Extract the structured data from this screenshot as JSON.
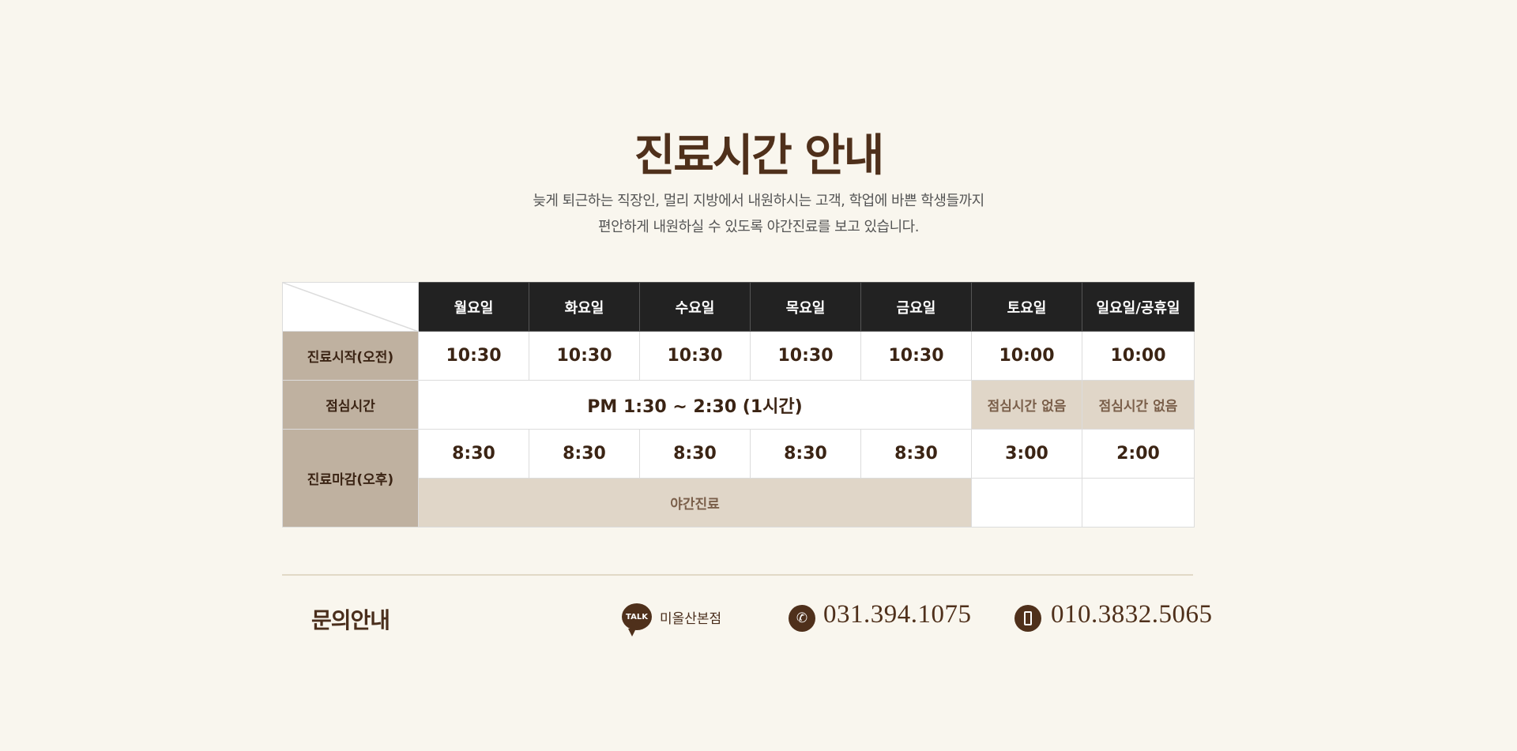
{
  "title": "진료시간 안내",
  "subtitle": [
    "늦게 퇴근하는 직장인, 멀리 지방에서 내원하시는 고객, 학업에 바쁜 학생들까지",
    "편안하게 내원하실 수 있도록 야간진료를 보고 있습니다."
  ],
  "table": {
    "days": [
      "월요일",
      "화요일",
      "수요일",
      "목요일",
      "금요일",
      "토요일",
      "일요일/공휴일"
    ],
    "rows": {
      "start_label": "진료시작(오전)",
      "start": [
        "10:30",
        "10:30",
        "10:30",
        "10:30",
        "10:30",
        "10:00",
        "10:00"
      ],
      "lunch_label": "점심시간",
      "lunch": "PM 1:30 ~ 2:30 (1시간)",
      "no_lunch": "점심시간 없음",
      "end_label": "진료마감(오후)",
      "end": [
        "8:30",
        "8:30",
        "8:30",
        "8:30",
        "8:30",
        "3:00",
        "2:00"
      ],
      "night": "야간진료"
    }
  },
  "contact": {
    "label": "문의안내",
    "kakao_icon": "TALK",
    "kakao_name": "미올산본점",
    "phone": "031.394.1075",
    "mobile": "010.3832.5065"
  }
}
